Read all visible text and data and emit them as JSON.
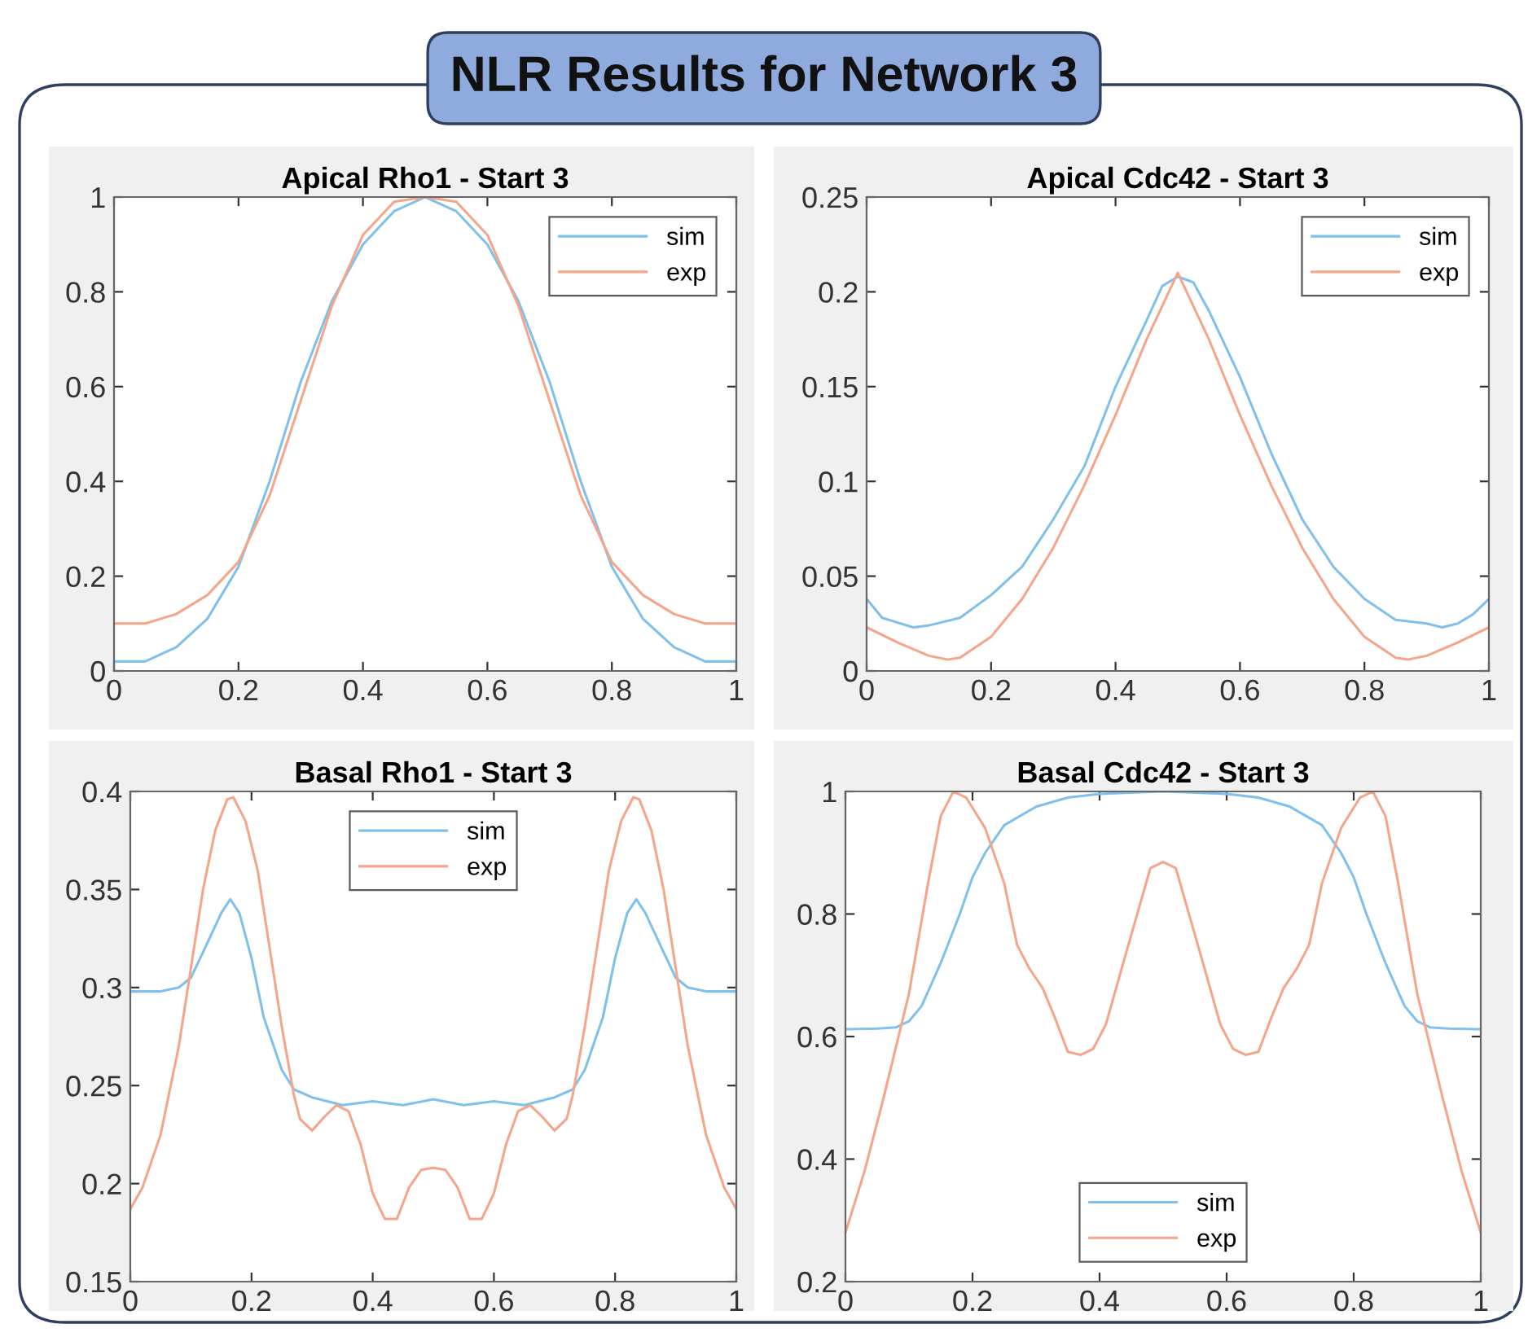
{
  "chart_data": [
    {
      "type": "other",
      "title": "NLR Results for Network 3"
    },
    {
      "type": "line",
      "title": "Apical Rho1 - Start 3",
      "xlim": [
        0,
        1
      ],
      "xticks": [
        0,
        0.2,
        0.4,
        0.6,
        0.8,
        1
      ],
      "ylim": [
        0,
        1
      ],
      "yticks": [
        0,
        0.2,
        0.4,
        0.6,
        0.8,
        1
      ],
      "grid": false,
      "legend": "top right",
      "marker": "none",
      "line_style": "solid",
      "series": [
        {
          "name": "sim",
          "color": "#80c0ea",
          "x": [
            0,
            0.05,
            0.1,
            0.15,
            0.2,
            0.25,
            0.3,
            0.35,
            0.4,
            0.45,
            0.5,
            0.55,
            0.6,
            0.65,
            0.7,
            0.75,
            0.8,
            0.85,
            0.9,
            0.95,
            1
          ],
          "values": [
            0.02,
            0.02,
            0.05,
            0.11,
            0.22,
            0.4,
            0.61,
            0.78,
            0.9,
            0.97,
            1.0,
            0.97,
            0.9,
            0.78,
            0.61,
            0.4,
            0.22,
            0.11,
            0.05,
            0.02,
            0.02
          ]
        },
        {
          "name": "exp",
          "color": "#f4a58a",
          "x": [
            0,
            0.05,
            0.1,
            0.15,
            0.2,
            0.25,
            0.3,
            0.35,
            0.4,
            0.45,
            0.5,
            0.55,
            0.6,
            0.65,
            0.7,
            0.75,
            0.8,
            0.85,
            0.9,
            0.95,
            1
          ],
          "values": [
            0.1,
            0.1,
            0.12,
            0.16,
            0.23,
            0.37,
            0.57,
            0.77,
            0.92,
            0.99,
            1.0,
            0.99,
            0.92,
            0.77,
            0.57,
            0.37,
            0.23,
            0.16,
            0.12,
            0.1,
            0.1
          ]
        }
      ]
    },
    {
      "type": "line",
      "title": "Apical Cdc42 - Start 3",
      "xlim": [
        0,
        1
      ],
      "xticks": [
        0,
        0.2,
        0.4,
        0.6,
        0.8,
        1
      ],
      "ylim": [
        0,
        0.25
      ],
      "yticks": [
        0,
        0.05,
        0.1,
        0.15,
        0.2,
        0.25
      ],
      "grid": false,
      "legend": "top right",
      "marker": "none",
      "line_style": "solid",
      "series": [
        {
          "name": "sim",
          "color": "#80c0ea",
          "x": [
            0,
            0.025,
            0.075,
            0.1,
            0.15,
            0.2,
            0.25,
            0.3,
            0.35,
            0.4,
            0.45,
            0.475,
            0.5,
            0.525,
            0.55,
            0.6,
            0.65,
            0.7,
            0.75,
            0.8,
            0.85,
            0.9,
            0.925,
            0.95,
            0.975,
            1
          ],
          "values": [
            0.038,
            0.028,
            0.023,
            0.024,
            0.028,
            0.04,
            0.055,
            0.08,
            0.108,
            0.15,
            0.185,
            0.203,
            0.208,
            0.205,
            0.19,
            0.155,
            0.115,
            0.08,
            0.055,
            0.038,
            0.027,
            0.025,
            0.023,
            0.025,
            0.03,
            0.038
          ]
        },
        {
          "name": "exp",
          "color": "#f4a58a",
          "x": [
            0,
            0.05,
            0.1,
            0.13,
            0.15,
            0.2,
            0.25,
            0.3,
            0.35,
            0.4,
            0.45,
            0.5,
            0.55,
            0.6,
            0.65,
            0.7,
            0.75,
            0.8,
            0.85,
            0.87,
            0.9,
            0.95,
            1
          ],
          "values": [
            0.023,
            0.015,
            0.008,
            0.006,
            0.007,
            0.018,
            0.038,
            0.065,
            0.098,
            0.135,
            0.175,
            0.21,
            0.175,
            0.135,
            0.098,
            0.065,
            0.038,
            0.018,
            0.007,
            0.006,
            0.008,
            0.015,
            0.023
          ]
        }
      ]
    },
    {
      "type": "line",
      "title": "Basal Rho1 - Start 3",
      "xlim": [
        0,
        1
      ],
      "xticks": [
        0,
        0.2,
        0.4,
        0.6,
        0.8,
        1
      ],
      "ylim": [
        0.15,
        0.4
      ],
      "yticks": [
        0.15,
        0.2,
        0.25,
        0.3,
        0.35,
        0.4
      ],
      "grid": false,
      "legend": "top",
      "marker": "none",
      "line_style": "solid",
      "series": [
        {
          "name": "sim",
          "color": "#80c0ea",
          "x": [
            0,
            0.05,
            0.08,
            0.1,
            0.12,
            0.15,
            0.165,
            0.18,
            0.2,
            0.22,
            0.25,
            0.27,
            0.3,
            0.35,
            0.4,
            0.45,
            0.5,
            0.55,
            0.6,
            0.65,
            0.7,
            0.73,
            0.75,
            0.78,
            0.8,
            0.82,
            0.835,
            0.85,
            0.88,
            0.9,
            0.92,
            0.95,
            1
          ],
          "values": [
            0.298,
            0.298,
            0.3,
            0.305,
            0.318,
            0.338,
            0.345,
            0.338,
            0.315,
            0.285,
            0.258,
            0.248,
            0.244,
            0.24,
            0.242,
            0.24,
            0.243,
            0.24,
            0.242,
            0.24,
            0.244,
            0.248,
            0.258,
            0.285,
            0.315,
            0.338,
            0.345,
            0.338,
            0.318,
            0.305,
            0.3,
            0.298,
            0.298
          ]
        },
        {
          "name": "exp",
          "color": "#f4a58a",
          "x": [
            0,
            0.02,
            0.05,
            0.08,
            0.1,
            0.12,
            0.14,
            0.16,
            0.17,
            0.19,
            0.21,
            0.23,
            0.25,
            0.27,
            0.28,
            0.3,
            0.32,
            0.34,
            0.36,
            0.38,
            0.4,
            0.42,
            0.44,
            0.46,
            0.48,
            0.5,
            0.52,
            0.54,
            0.56,
            0.58,
            0.6,
            0.62,
            0.64,
            0.66,
            0.68,
            0.7,
            0.72,
            0.73,
            0.75,
            0.77,
            0.79,
            0.81,
            0.83,
            0.84,
            0.86,
            0.88,
            0.9,
            0.92,
            0.95,
            0.98,
            1
          ],
          "values": [
            0.187,
            0.198,
            0.225,
            0.27,
            0.31,
            0.35,
            0.38,
            0.396,
            0.397,
            0.385,
            0.36,
            0.32,
            0.28,
            0.245,
            0.233,
            0.227,
            0.234,
            0.24,
            0.237,
            0.22,
            0.195,
            0.182,
            0.182,
            0.198,
            0.207,
            0.208,
            0.207,
            0.198,
            0.182,
            0.182,
            0.195,
            0.22,
            0.237,
            0.24,
            0.234,
            0.227,
            0.233,
            0.245,
            0.28,
            0.32,
            0.36,
            0.385,
            0.397,
            0.396,
            0.38,
            0.35,
            0.31,
            0.27,
            0.225,
            0.198,
            0.187
          ]
        }
      ]
    },
    {
      "type": "line",
      "title": "Basal Cdc42 - Start 3",
      "xlim": [
        0,
        1
      ],
      "xticks": [
        0,
        0.2,
        0.4,
        0.6,
        0.8,
        1
      ],
      "ylim": [
        0.2,
        1
      ],
      "yticks": [
        0.2,
        0.4,
        0.6,
        0.8,
        1
      ],
      "grid": false,
      "legend": "bottom",
      "marker": "none",
      "line_style": "solid",
      "series": [
        {
          "name": "sim",
          "color": "#80c0ea",
          "x": [
            0,
            0.05,
            0.08,
            0.1,
            0.12,
            0.15,
            0.18,
            0.2,
            0.22,
            0.25,
            0.3,
            0.35,
            0.4,
            0.5,
            0.6,
            0.65,
            0.7,
            0.75,
            0.78,
            0.8,
            0.82,
            0.85,
            0.88,
            0.9,
            0.92,
            0.95,
            1
          ],
          "values": [
            0.612,
            0.613,
            0.615,
            0.625,
            0.65,
            0.72,
            0.8,
            0.86,
            0.9,
            0.945,
            0.975,
            0.99,
            0.996,
            1.0,
            0.996,
            0.99,
            0.975,
            0.945,
            0.9,
            0.86,
            0.8,
            0.72,
            0.65,
            0.625,
            0.615,
            0.613,
            0.612
          ]
        },
        {
          "name": "exp",
          "color": "#f4a58a",
          "x": [
            0,
            0.03,
            0.06,
            0.1,
            0.13,
            0.15,
            0.17,
            0.19,
            0.22,
            0.25,
            0.27,
            0.29,
            0.31,
            0.33,
            0.35,
            0.37,
            0.39,
            0.41,
            0.44,
            0.48,
            0.5,
            0.52,
            0.56,
            0.59,
            0.61,
            0.63,
            0.65,
            0.67,
            0.69,
            0.71,
            0.73,
            0.75,
            0.78,
            0.81,
            0.83,
            0.85,
            0.87,
            0.9,
            0.94,
            0.97,
            1
          ],
          "values": [
            0.28,
            0.38,
            0.5,
            0.67,
            0.85,
            0.96,
            1.0,
            0.99,
            0.94,
            0.85,
            0.75,
            0.71,
            0.68,
            0.63,
            0.575,
            0.57,
            0.58,
            0.62,
            0.73,
            0.875,
            0.885,
            0.875,
            0.73,
            0.62,
            0.58,
            0.57,
            0.575,
            0.63,
            0.68,
            0.71,
            0.75,
            0.85,
            0.94,
            0.99,
            1.0,
            0.96,
            0.85,
            0.67,
            0.5,
            0.38,
            0.28
          ]
        }
      ]
    }
  ]
}
